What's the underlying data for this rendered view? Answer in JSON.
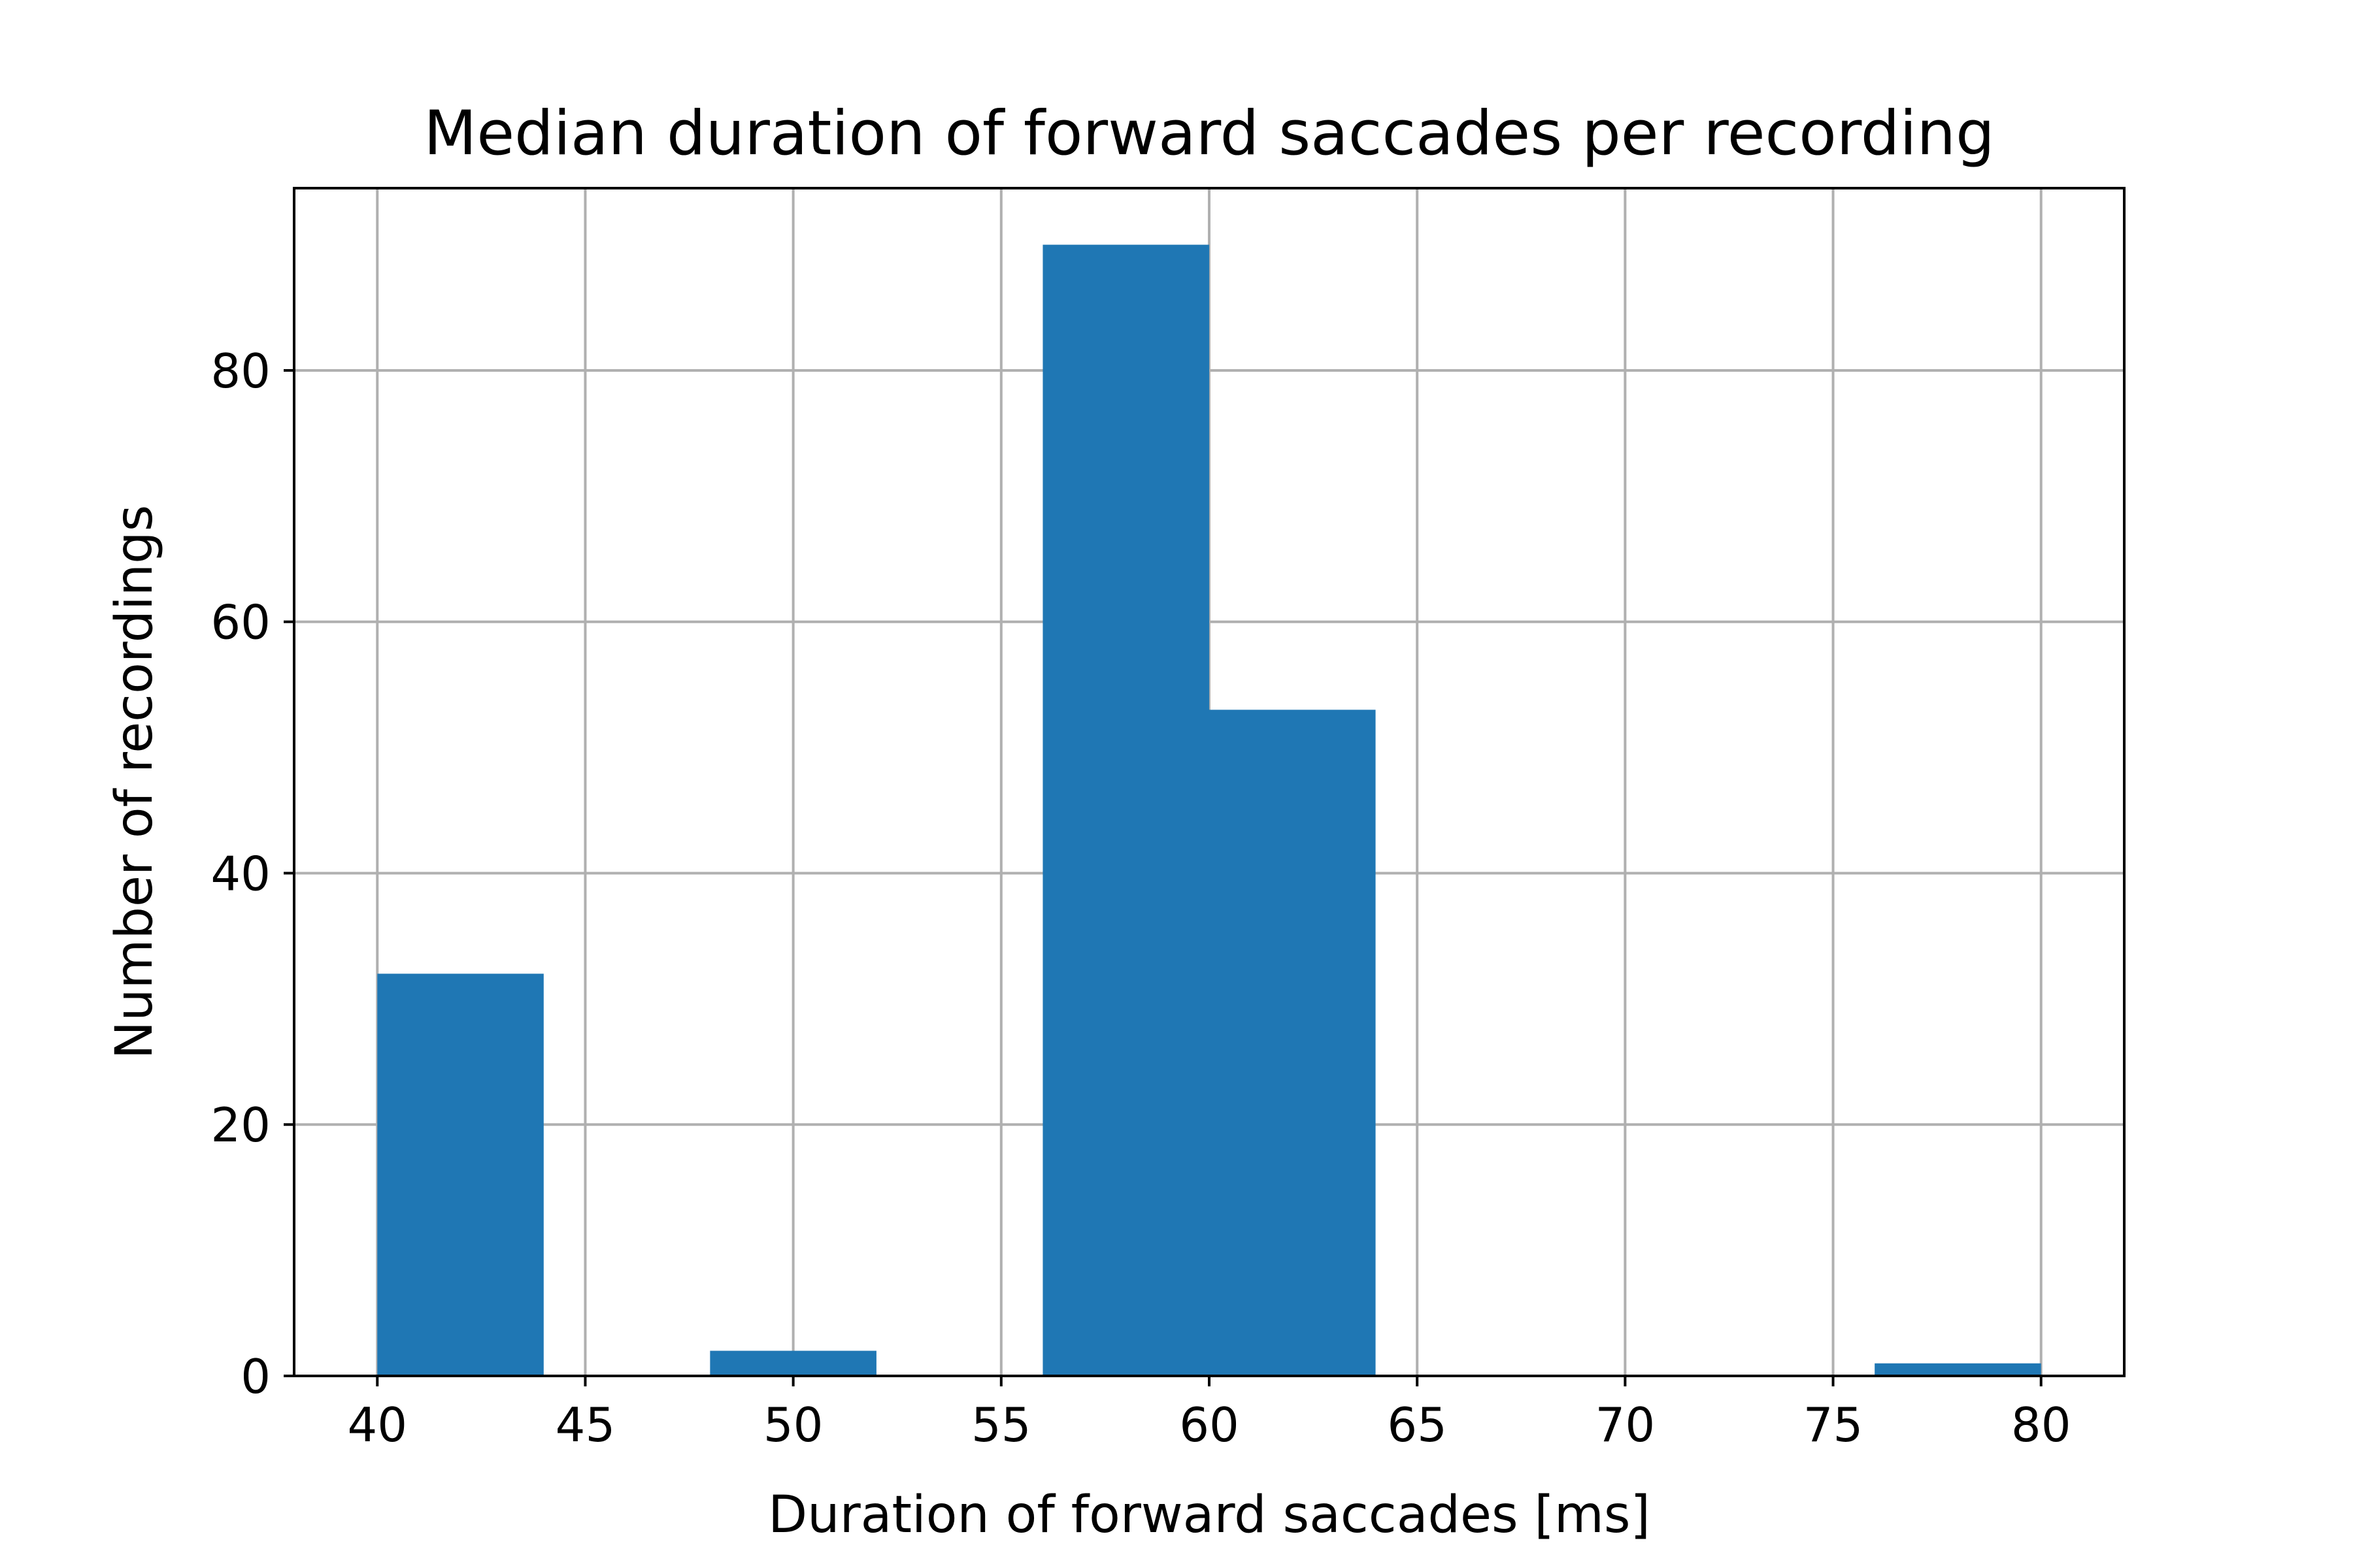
{
  "chart_data": {
    "type": "bar",
    "title": "Median duration of forward saccades per recording",
    "xlabel": "Duration of forward saccades [ms]",
    "ylabel": "Number of recordings",
    "xlim": [
      38,
      82
    ],
    "ylim": [
      0,
      94.5
    ],
    "xticks": [
      40,
      45,
      50,
      55,
      60,
      65,
      70,
      75,
      80
    ],
    "yticks": [
      0,
      20,
      40,
      60,
      80
    ],
    "grid": true,
    "bar_color": "#1f77b4",
    "bins": [
      {
        "x0": 40,
        "x1": 44,
        "count": 32
      },
      {
        "x0": 44,
        "x1": 48,
        "count": 0
      },
      {
        "x0": 48,
        "x1": 52,
        "count": 2
      },
      {
        "x0": 52,
        "x1": 56,
        "count": 0
      },
      {
        "x0": 56,
        "x1": 60,
        "count": 90
      },
      {
        "x0": 60,
        "x1": 64,
        "count": 53
      },
      {
        "x0": 64,
        "x1": 68,
        "count": 0
      },
      {
        "x0": 68,
        "x1": 72,
        "count": 0
      },
      {
        "x0": 72,
        "x1": 76,
        "count": 0
      },
      {
        "x0": 76,
        "x1": 80,
        "count": 1
      }
    ]
  }
}
